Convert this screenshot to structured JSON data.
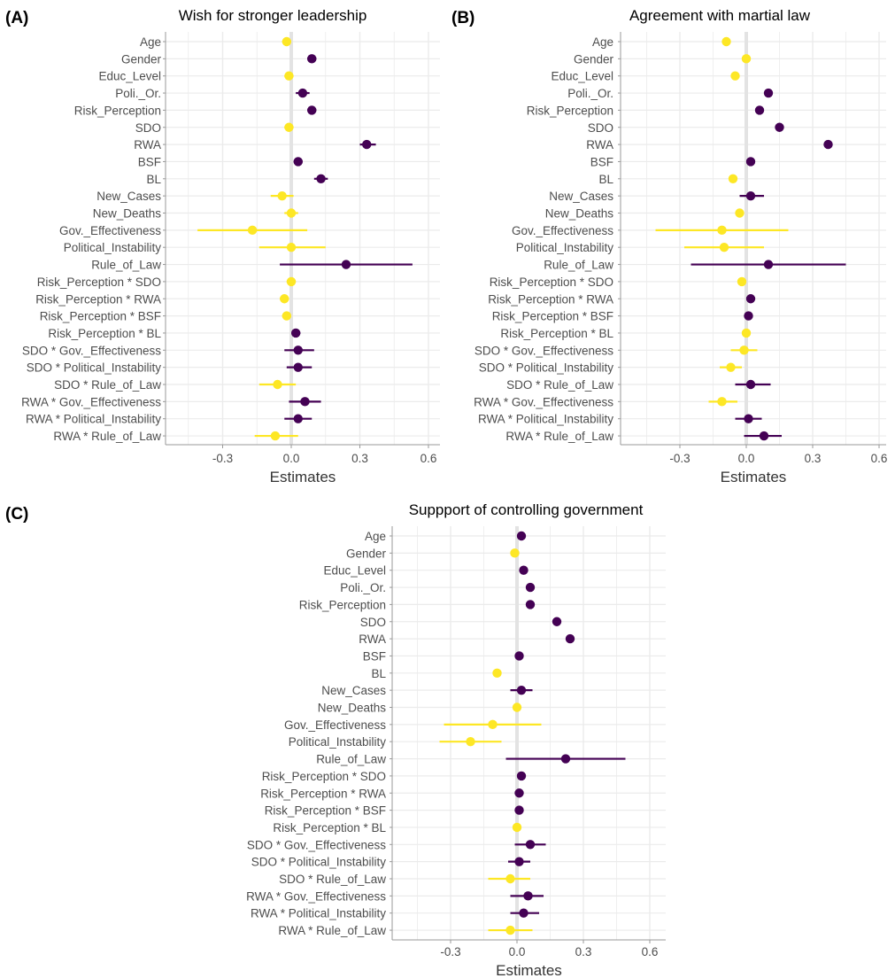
{
  "colors": {
    "positive": "#440154",
    "negative": "#fde725",
    "grid": "#ebebeb",
    "zero_line": "#e3e3e3"
  },
  "terms": [
    "Age",
    "Gender",
    "Educ_Level",
    "Poli._Or.",
    "Risk_Perception",
    "SDO",
    "RWA",
    "BSF",
    "BL",
    "New_Cases",
    "New_Deaths",
    "Gov._Effectiveness",
    "Political_Instability",
    "Rule_of_Law",
    "Risk_Perception * SDO",
    "Risk_Perception * RWA",
    "Risk_Perception * BSF",
    "Risk_Perception * BL",
    "SDO * Gov._Effectiveness",
    "SDO * Political_Instability",
    "SDO * Rule_of_Law",
    "RWA * Gov._Effectiveness",
    "RWA * Political_Instability",
    "RWA * Rule_of_Law"
  ],
  "chart_data": [
    {
      "type": "scatter",
      "panel_label": "(A)",
      "title": "Wish for stronger leadership",
      "xlabel": "Estimates",
      "xticks": [
        -0.3,
        0.0,
        0.3,
        0.6
      ],
      "xtick_labels": [
        "-0.3",
        "0.0",
        "0.3",
        "0.6"
      ],
      "xlim": [
        -0.57,
        0.66
      ],
      "grid": true,
      "estimates": [
        -0.02,
        0.09,
        -0.01,
        0.05,
        0.09,
        -0.01,
        0.33,
        0.03,
        0.13,
        -0.04,
        0.0,
        -0.17,
        0.0,
        0.24,
        0.0,
        -0.03,
        -0.02,
        0.02,
        0.03,
        0.03,
        -0.06,
        0.06,
        0.03,
        -0.07
      ],
      "ci_low": [
        -0.04,
        0.07,
        -0.03,
        0.02,
        0.07,
        -0.03,
        0.3,
        0.01,
        0.1,
        -0.09,
        -0.03,
        -0.41,
        -0.14,
        -0.05,
        -0.02,
        -0.05,
        -0.04,
        0.0,
        -0.03,
        -0.02,
        -0.14,
        -0.01,
        -0.03,
        -0.16
      ],
      "ci_high": [
        0.0,
        0.11,
        0.01,
        0.08,
        0.11,
        0.01,
        0.37,
        0.05,
        0.16,
        0.01,
        0.03,
        0.07,
        0.15,
        0.53,
        0.02,
        -0.01,
        0.0,
        0.04,
        0.1,
        0.09,
        0.02,
        0.13,
        0.09,
        0.03
      ]
    },
    {
      "type": "scatter",
      "panel_label": "(B)",
      "title": "Agreement with martial law",
      "xlabel": "Estimates",
      "xticks": [
        -0.3,
        0.0,
        0.3,
        0.6
      ],
      "xtick_labels": [
        "-0.3",
        "0.0",
        "0.3",
        "0.6"
      ],
      "xlim": [
        -0.57,
        0.66
      ],
      "grid": true,
      "estimates": [
        -0.09,
        0.0,
        -0.05,
        0.1,
        0.06,
        0.15,
        0.37,
        0.02,
        -0.06,
        0.02,
        -0.03,
        -0.11,
        -0.1,
        0.1,
        -0.02,
        0.02,
        0.01,
        0.0,
        -0.01,
        -0.07,
        0.02,
        -0.11,
        0.01,
        0.08
      ],
      "ci_low": [
        -0.11,
        -0.02,
        -0.07,
        0.08,
        0.04,
        0.13,
        0.35,
        0.0,
        -0.08,
        -0.03,
        -0.05,
        -0.41,
        -0.28,
        -0.25,
        -0.04,
        0.0,
        -0.01,
        -0.02,
        -0.07,
        -0.12,
        -0.05,
        -0.17,
        -0.05,
        -0.01
      ],
      "ci_high": [
        -0.07,
        0.02,
        -0.03,
        0.12,
        0.08,
        0.17,
        0.39,
        0.04,
        -0.04,
        0.08,
        -0.01,
        0.19,
        0.08,
        0.45,
        0.0,
        0.04,
        0.03,
        0.02,
        0.05,
        -0.02,
        0.11,
        -0.04,
        0.07,
        0.16
      ]
    },
    {
      "type": "scatter",
      "panel_label": "(C)",
      "title": "Suppport of controlling government",
      "xlabel": "Estimates",
      "xticks": [
        -0.3,
        0.0,
        0.3,
        0.6
      ],
      "xtick_labels": [
        "-0.3",
        "0.0",
        "0.3",
        "0.6"
      ],
      "xlim": [
        -0.57,
        0.66
      ],
      "grid": true,
      "estimates": [
        0.02,
        -0.01,
        0.03,
        0.06,
        0.06,
        0.18,
        0.24,
        0.01,
        -0.09,
        0.02,
        0.0,
        -0.11,
        -0.21,
        0.22,
        0.02,
        0.01,
        0.01,
        0.0,
        0.06,
        0.01,
        -0.03,
        0.05,
        0.03,
        -0.03
      ],
      "ci_low": [
        0.0,
        -0.03,
        0.01,
        0.04,
        0.04,
        0.16,
        0.22,
        -0.01,
        -0.11,
        -0.03,
        -0.02,
        -0.33,
        -0.35,
        -0.05,
        0.0,
        -0.01,
        -0.01,
        -0.02,
        -0.01,
        -0.04,
        -0.13,
        -0.03,
        -0.03,
        -0.13
      ],
      "ci_high": [
        0.04,
        0.01,
        0.05,
        0.08,
        0.08,
        0.2,
        0.26,
        0.03,
        -0.07,
        0.07,
        0.02,
        0.11,
        -0.07,
        0.49,
        0.04,
        0.03,
        0.03,
        0.02,
        0.13,
        0.06,
        0.06,
        0.12,
        0.1,
        0.07
      ]
    }
  ]
}
